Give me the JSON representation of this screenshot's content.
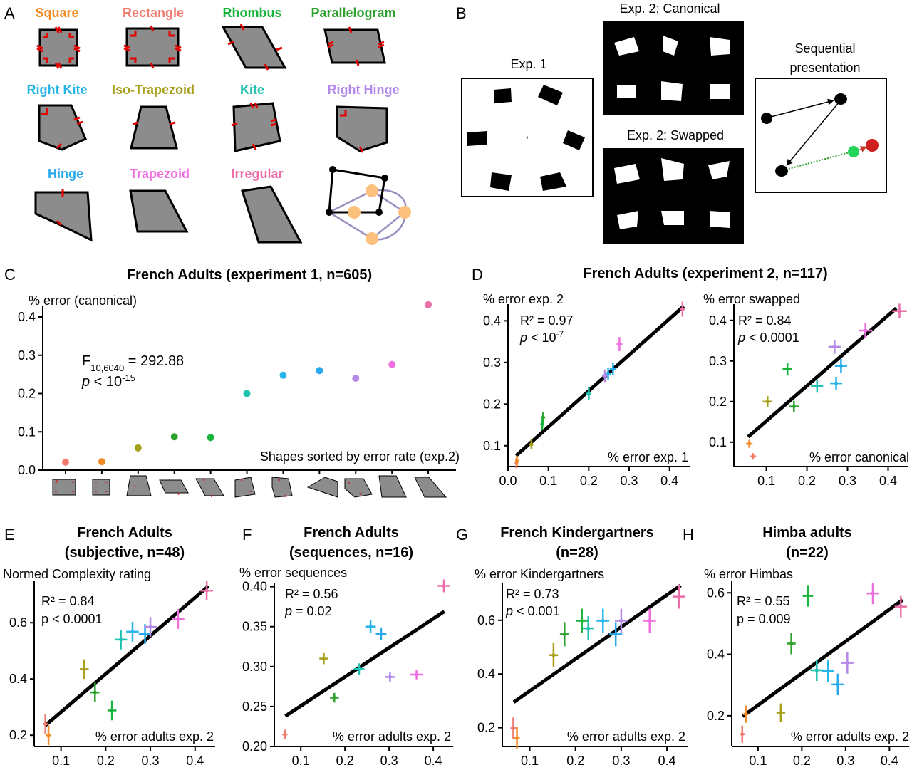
{
  "colors": {
    "square": "#f28c28",
    "rectangle": "#f07b6e",
    "rhombus": "#17b33b",
    "parallelogram": "#2ea12e",
    "right_kite": "#26b5e8",
    "iso_trapezoid": "#a8a01b",
    "kite": "#1fc2b0",
    "right_hinge": "#b388e8",
    "hinge": "#28a9ec",
    "trapezoid": "#ef6fde",
    "irregular": "#ec6fa9"
  },
  "panel_labels": [
    "A",
    "B",
    "C",
    "D",
    "E",
    "F",
    "G",
    "H"
  ],
  "panelA": {
    "shapes": [
      {
        "name": "Square",
        "color": "#f28c28"
      },
      {
        "name": "Rectangle",
        "color": "#f07b6e"
      },
      {
        "name": "Rhombus",
        "color": "#17b33b"
      },
      {
        "name": "Parallelogram",
        "color": "#2ea12e"
      },
      {
        "name": "Right Kite",
        "color": "#26b5e8"
      },
      {
        "name": "Iso-Trapezoid",
        "color": "#a8a01b"
      },
      {
        "name": "Kite",
        "color": "#1fc2b0"
      },
      {
        "name": "Right Hinge",
        "color": "#b388e8"
      },
      {
        "name": "Hinge",
        "color": "#28a9ec"
      },
      {
        "name": "Trapezoid",
        "color": "#ef6fde"
      },
      {
        "name": "Irregular",
        "color": "#ec6fa9"
      }
    ]
  },
  "panelB": {
    "exp1_label": "Exp. 1",
    "exp2_canonical_label": "Exp. 2; Canonical",
    "exp2_swapped_label": "Exp. 2; Swapped",
    "sequential_label_line1": "Sequential",
    "sequential_label_line2": "presentation"
  },
  "chart_data": [
    {
      "id": "C",
      "type": "scatter",
      "title": "French Adults (experiment 1, n=605)",
      "ylabel": "% error (canonical)",
      "xlabel": "Shapes sorted by error rate (exp.2)",
      "ylim": [
        0,
        0.4
      ],
      "yticks": [
        "0.0",
        "0.1",
        "0.2",
        "0.3",
        "0.4"
      ],
      "stats": {
        "F_prefix": "F",
        "F_sub": "10,6040",
        "F_value": " = 292.88",
        "p_prefix": "p",
        "p_text": " < 10",
        "p_exp": "-15"
      },
      "points": [
        {
          "shape": "Rectangle",
          "y": 0.021,
          "color": "#f07b6e"
        },
        {
          "shape": "Square",
          "y": 0.022,
          "color": "#f28c28"
        },
        {
          "shape": "Iso-Trapezoid",
          "y": 0.058,
          "color": "#a8a01b"
        },
        {
          "shape": "Parallelogram",
          "y": 0.087,
          "color": "#2ea12e"
        },
        {
          "shape": "Rhombus",
          "y": 0.085,
          "color": "#17b33b"
        },
        {
          "shape": "Kite",
          "y": 0.2,
          "color": "#1fc2b0"
        },
        {
          "shape": "Right Kite",
          "y": 0.248,
          "color": "#26b5e8"
        },
        {
          "shape": "Hinge",
          "y": 0.26,
          "color": "#28a9ec"
        },
        {
          "shape": "Right Hinge",
          "y": 0.24,
          "color": "#b388e8"
        },
        {
          "shape": "Trapezoid",
          "y": 0.276,
          "color": "#ef6fde"
        },
        {
          "shape": "Irregular",
          "y": 0.432,
          "color": "#ec6fa9"
        }
      ]
    },
    {
      "id": "D1",
      "type": "scatter",
      "title": "French Adults (experiment 2, n=117)",
      "ylabel": "% error exp. 2",
      "xlabel": "% error exp. 1",
      "xlim": [
        0,
        0.45
      ],
      "ylim": [
        0.05,
        0.44
      ],
      "xticks": [
        0.0,
        0.1,
        0.2,
        0.3,
        0.4
      ],
      "xtick_labels": [
        "0.0",
        "0.1",
        "0.2",
        "0.3",
        "0.4"
      ],
      "yticks": [
        0.1,
        0.2,
        0.3,
        0.4
      ],
      "ytick_labels": [
        "0.1",
        "0.2",
        "0.3",
        "0.4"
      ],
      "stats": {
        "r2": "R² = 0.97",
        "p_prefix": "p",
        "p_text": " < 10",
        "p_exp": "-7"
      },
      "fit": {
        "x1": 0.02,
        "y1": 0.076,
        "x2": 0.435,
        "y2": 0.435
      },
      "points": [
        {
          "x": 0.021,
          "y": 0.058,
          "xe": 0.004,
          "ye": 0.012,
          "color": "#f07b6e"
        },
        {
          "x": 0.022,
          "y": 0.064,
          "xe": 0.004,
          "ye": 0.012,
          "color": "#f28c28"
        },
        {
          "x": 0.058,
          "y": 0.103,
          "xe": 0.005,
          "ye": 0.012,
          "color": "#a8a01b"
        },
        {
          "x": 0.087,
          "y": 0.168,
          "xe": 0.005,
          "ye": 0.013,
          "color": "#2ea12e"
        },
        {
          "x": 0.085,
          "y": 0.152,
          "xe": 0.005,
          "ye": 0.013,
          "color": "#17b33b"
        },
        {
          "x": 0.2,
          "y": 0.225,
          "xe": 0.006,
          "ye": 0.015,
          "color": "#1fc2b0"
        },
        {
          "x": 0.248,
          "y": 0.272,
          "xe": 0.008,
          "ye": 0.015,
          "color": "#26b5e8"
        },
        {
          "x": 0.26,
          "y": 0.284,
          "xe": 0.008,
          "ye": 0.015,
          "color": "#28a9ec"
        },
        {
          "x": 0.24,
          "y": 0.268,
          "xe": 0.007,
          "ye": 0.015,
          "color": "#b388e8"
        },
        {
          "x": 0.276,
          "y": 0.344,
          "xe": 0.007,
          "ye": 0.017,
          "color": "#ef6fde"
        },
        {
          "x": 0.432,
          "y": 0.428,
          "xe": 0.006,
          "ye": 0.018,
          "color": "#ec6fa9"
        }
      ]
    },
    {
      "id": "D2",
      "type": "scatter",
      "ylabel": "% error swapped",
      "xlabel": "% error canonical",
      "xlim": [
        0.02,
        0.45
      ],
      "ylim": [
        0.04,
        0.44
      ],
      "xticks": [
        0.1,
        0.2,
        0.3,
        0.4
      ],
      "xtick_labels": [
        "0.1",
        "0.2",
        "0.3",
        "0.4"
      ],
      "yticks": [
        0.1,
        0.2,
        0.3,
        0.4
      ],
      "ytick_labels": [
        "0.1",
        "0.2",
        "0.3",
        "0.4"
      ],
      "stats": {
        "r2": "R² = 0.84",
        "p_prefix": "p",
        "p_text": " < 0.0001"
      },
      "fit": {
        "x1": 0.055,
        "y1": 0.113,
        "x2": 0.42,
        "y2": 0.43
      },
      "points": [
        {
          "x": 0.067,
          "y": 0.065,
          "xe": 0.008,
          "ye": 0.008,
          "color": "#f07b6e"
        },
        {
          "x": 0.058,
          "y": 0.096,
          "xe": 0.008,
          "ye": 0.01,
          "color": "#f28c28"
        },
        {
          "x": 0.103,
          "y": 0.2,
          "xe": 0.012,
          "ye": 0.014,
          "color": "#a8a01b"
        },
        {
          "x": 0.168,
          "y": 0.188,
          "xe": 0.012,
          "ye": 0.014,
          "color": "#2ea12e"
        },
        {
          "x": 0.152,
          "y": 0.28,
          "xe": 0.012,
          "ye": 0.016,
          "color": "#17b33b"
        },
        {
          "x": 0.225,
          "y": 0.238,
          "xe": 0.015,
          "ye": 0.016,
          "color": "#1fc2b0"
        },
        {
          "x": 0.272,
          "y": 0.245,
          "xe": 0.015,
          "ye": 0.016,
          "color": "#26b5e8"
        },
        {
          "x": 0.284,
          "y": 0.288,
          "xe": 0.015,
          "ye": 0.017,
          "color": "#28a9ec"
        },
        {
          "x": 0.268,
          "y": 0.335,
          "xe": 0.015,
          "ye": 0.017,
          "color": "#b388e8"
        },
        {
          "x": 0.344,
          "y": 0.375,
          "xe": 0.017,
          "ye": 0.018,
          "color": "#ef6fde"
        },
        {
          "x": 0.428,
          "y": 0.423,
          "xe": 0.018,
          "ye": 0.018,
          "color": "#ec6fa9"
        }
      ]
    },
    {
      "id": "E",
      "type": "scatter",
      "title_line1": "French Adults",
      "title_line2": "(subjective, n=48)",
      "ylabel": "Normed Complexity rating",
      "xlabel": "% error adults exp. 2",
      "xlim": [
        0.04,
        0.445
      ],
      "ylim": [
        0.16,
        0.75
      ],
      "xticks": [
        0.1,
        0.2,
        0.3,
        0.4
      ],
      "xtick_labels": [
        "0.1",
        "0.2",
        "0.3",
        "0.4"
      ],
      "yticks": [
        0.2,
        0.4,
        0.6
      ],
      "ytick_labels": [
        "0.2",
        "0.4",
        "0.6"
      ],
      "stats": {
        "r2": "R² = 0.84",
        "p_text": "p < 0.0001"
      },
      "fit": {
        "x1": 0.065,
        "y1": 0.235,
        "x2": 0.43,
        "y2": 0.73
      },
      "points": [
        {
          "x": 0.065,
          "y": 0.24,
          "xe": 0.006,
          "ye": 0.035,
          "color": "#f07b6e"
        },
        {
          "x": 0.072,
          "y": 0.2,
          "xe": 0.006,
          "ye": 0.035,
          "color": "#f28c28"
        },
        {
          "x": 0.152,
          "y": 0.435,
          "xe": 0.01,
          "ye": 0.035,
          "color": "#a8a01b"
        },
        {
          "x": 0.176,
          "y": 0.352,
          "xe": 0.01,
          "ye": 0.035,
          "color": "#2ea12e"
        },
        {
          "x": 0.214,
          "y": 0.288,
          "xe": 0.01,
          "ye": 0.035,
          "color": "#17b33b"
        },
        {
          "x": 0.234,
          "y": 0.54,
          "xe": 0.014,
          "ye": 0.035,
          "color": "#1fc2b0"
        },
        {
          "x": 0.26,
          "y": 0.568,
          "xe": 0.014,
          "ye": 0.035,
          "color": "#26b5e8"
        },
        {
          "x": 0.288,
          "y": 0.56,
          "xe": 0.014,
          "ye": 0.035,
          "color": "#28a9ec"
        },
        {
          "x": 0.3,
          "y": 0.585,
          "xe": 0.014,
          "ye": 0.035,
          "color": "#b388e8"
        },
        {
          "x": 0.362,
          "y": 0.613,
          "xe": 0.014,
          "ye": 0.035,
          "color": "#ef6fde"
        },
        {
          "x": 0.426,
          "y": 0.714,
          "xe": 0.014,
          "ye": 0.035,
          "color": "#ec6fa9"
        }
      ]
    },
    {
      "id": "F",
      "type": "scatter",
      "title_line1": "French Adults",
      "title_line2": "(sequences, n=16)",
      "ylabel": "% error sequences",
      "xlabel": "% error adults exp. 2",
      "xlim": [
        0.04,
        0.445
      ],
      "ylim": [
        0.2,
        0.405
      ],
      "xticks": [
        0.1,
        0.2,
        0.3,
        0.4
      ],
      "xtick_labels": [
        "0.1",
        "0.2",
        "0.3",
        "0.4"
      ],
      "yticks": [
        0.2,
        0.25,
        0.3,
        0.35,
        0.4
      ],
      "ytick_labels": [
        "0.20",
        "0.25",
        "0.30",
        "0.35",
        "0.40"
      ],
      "stats": {
        "r2": "R² = 0.56",
        "p_prefix": "p",
        "p_text": " = 0.02"
      },
      "fit": {
        "x1": 0.065,
        "y1": 0.238,
        "x2": 0.425,
        "y2": 0.369
      },
      "points": [
        {
          "x": 0.064,
          "y": 0.215,
          "xe": 0.006,
          "ye": 0.006,
          "color": "#f07b6e"
        },
        {
          "x": 0.152,
          "y": 0.31,
          "xe": 0.01,
          "ye": 0.007,
          "color": "#a8a01b"
        },
        {
          "x": 0.176,
          "y": 0.261,
          "xe": 0.01,
          "ye": 0.006,
          "color": "#2ea12e"
        },
        {
          "x": 0.232,
          "y": 0.297,
          "xe": 0.012,
          "ye": 0.007,
          "color": "#1fc2b0"
        },
        {
          "x": 0.258,
          "y": 0.35,
          "xe": 0.012,
          "ye": 0.008,
          "color": "#26b5e8"
        },
        {
          "x": 0.282,
          "y": 0.341,
          "xe": 0.012,
          "ye": 0.008,
          "color": "#28a9ec"
        },
        {
          "x": 0.302,
          "y": 0.287,
          "xe": 0.012,
          "ye": 0.006,
          "color": "#b388e8"
        },
        {
          "x": 0.362,
          "y": 0.29,
          "xe": 0.014,
          "ye": 0.006,
          "color": "#ef6fde"
        },
        {
          "x": 0.424,
          "y": 0.401,
          "xe": 0.014,
          "ye": 0.008,
          "color": "#ec6fa9"
        }
      ]
    },
    {
      "id": "G",
      "type": "scatter",
      "title_line1": "French Kindergartners",
      "title_line2": "(n=28)",
      "ylabel": "% error Kindergartners",
      "xlabel": "% error adults exp. 2",
      "xlim": [
        0.04,
        0.445
      ],
      "ylim": [
        0.13,
        0.74
      ],
      "xticks": [
        0.1,
        0.2,
        0.3,
        0.4
      ],
      "xtick_labels": [
        "0.1",
        "0.2",
        "0.3",
        "0.4"
      ],
      "yticks": [
        0.2,
        0.4,
        0.6
      ],
      "ytick_labels": [
        "0.2",
        "0.4",
        "0.6"
      ],
      "stats": {
        "r2": "R² = 0.73",
        "p_prefix": "p",
        "p_text": " < 0.001"
      },
      "fit": {
        "x1": 0.065,
        "y1": 0.295,
        "x2": 0.43,
        "y2": 0.73
      },
      "points": [
        {
          "x": 0.064,
          "y": 0.198,
          "xe": 0.006,
          "ye": 0.04,
          "color": "#f07b6e"
        },
        {
          "x": 0.072,
          "y": 0.162,
          "xe": 0.006,
          "ye": 0.04,
          "color": "#f28c28"
        },
        {
          "x": 0.152,
          "y": 0.47,
          "xe": 0.01,
          "ye": 0.045,
          "color": "#a8a01b"
        },
        {
          "x": 0.176,
          "y": 0.548,
          "xe": 0.01,
          "ye": 0.045,
          "color": "#2ea12e"
        },
        {
          "x": 0.214,
          "y": 0.598,
          "xe": 0.012,
          "ye": 0.045,
          "color": "#17b33b"
        },
        {
          "x": 0.228,
          "y": 0.57,
          "xe": 0.012,
          "ye": 0.045,
          "color": "#1fc2b0"
        },
        {
          "x": 0.26,
          "y": 0.598,
          "xe": 0.014,
          "ye": 0.045,
          "color": "#26b5e8"
        },
        {
          "x": 0.288,
          "y": 0.548,
          "xe": 0.014,
          "ye": 0.045,
          "color": "#28a9ec"
        },
        {
          "x": 0.3,
          "y": 0.598,
          "xe": 0.014,
          "ye": 0.045,
          "color": "#b388e8"
        },
        {
          "x": 0.362,
          "y": 0.598,
          "xe": 0.014,
          "ye": 0.045,
          "color": "#ef6fde"
        },
        {
          "x": 0.426,
          "y": 0.688,
          "xe": 0.014,
          "ye": 0.045,
          "color": "#ec6fa9"
        }
      ]
    },
    {
      "id": "H",
      "type": "scatter",
      "title_line1": "Himba adults",
      "title_line2": "(n=22)",
      "ylabel": "% error Himbas",
      "xlabel": "% error adults exp. 2",
      "xlim": [
        0.04,
        0.445
      ],
      "ylim": [
        0.1,
        0.64
      ],
      "xticks": [
        0.1,
        0.2,
        0.3,
        0.4
      ],
      "xtick_labels": [
        "0.1",
        "0.2",
        "0.3",
        "0.4"
      ],
      "yticks": [
        0.2,
        0.4,
        0.6
      ],
      "ytick_labels": [
        "0.2",
        "0.4",
        "0.6"
      ],
      "stats": {
        "r2": "R² = 0.55",
        "p_text": "p = 0.009"
      },
      "fit": {
        "x1": 0.065,
        "y1": 0.198,
        "x2": 0.43,
        "y2": 0.577
      },
      "points": [
        {
          "x": 0.064,
          "y": 0.14,
          "xe": 0.006,
          "ye": 0.028,
          "color": "#f07b6e"
        },
        {
          "x": 0.072,
          "y": 0.205,
          "xe": 0.006,
          "ye": 0.028,
          "color": "#f28c28"
        },
        {
          "x": 0.152,
          "y": 0.21,
          "xe": 0.01,
          "ye": 0.03,
          "color": "#a8a01b"
        },
        {
          "x": 0.176,
          "y": 0.435,
          "xe": 0.01,
          "ye": 0.035,
          "color": "#2ea12e"
        },
        {
          "x": 0.214,
          "y": 0.59,
          "xe": 0.012,
          "ye": 0.035,
          "color": "#17b33b"
        },
        {
          "x": 0.234,
          "y": 0.348,
          "xe": 0.014,
          "ye": 0.035,
          "color": "#1fc2b0"
        },
        {
          "x": 0.26,
          "y": 0.345,
          "xe": 0.014,
          "ye": 0.035,
          "color": "#26b5e8"
        },
        {
          "x": 0.282,
          "y": 0.302,
          "xe": 0.014,
          "ye": 0.035,
          "color": "#28a9ec"
        },
        {
          "x": 0.304,
          "y": 0.372,
          "xe": 0.014,
          "ye": 0.035,
          "color": "#b388e8"
        },
        {
          "x": 0.362,
          "y": 0.598,
          "xe": 0.014,
          "ye": 0.035,
          "color": "#ef6fde"
        },
        {
          "x": 0.426,
          "y": 0.555,
          "xe": 0.014,
          "ye": 0.035,
          "color": "#ec6fa9"
        }
      ]
    }
  ]
}
